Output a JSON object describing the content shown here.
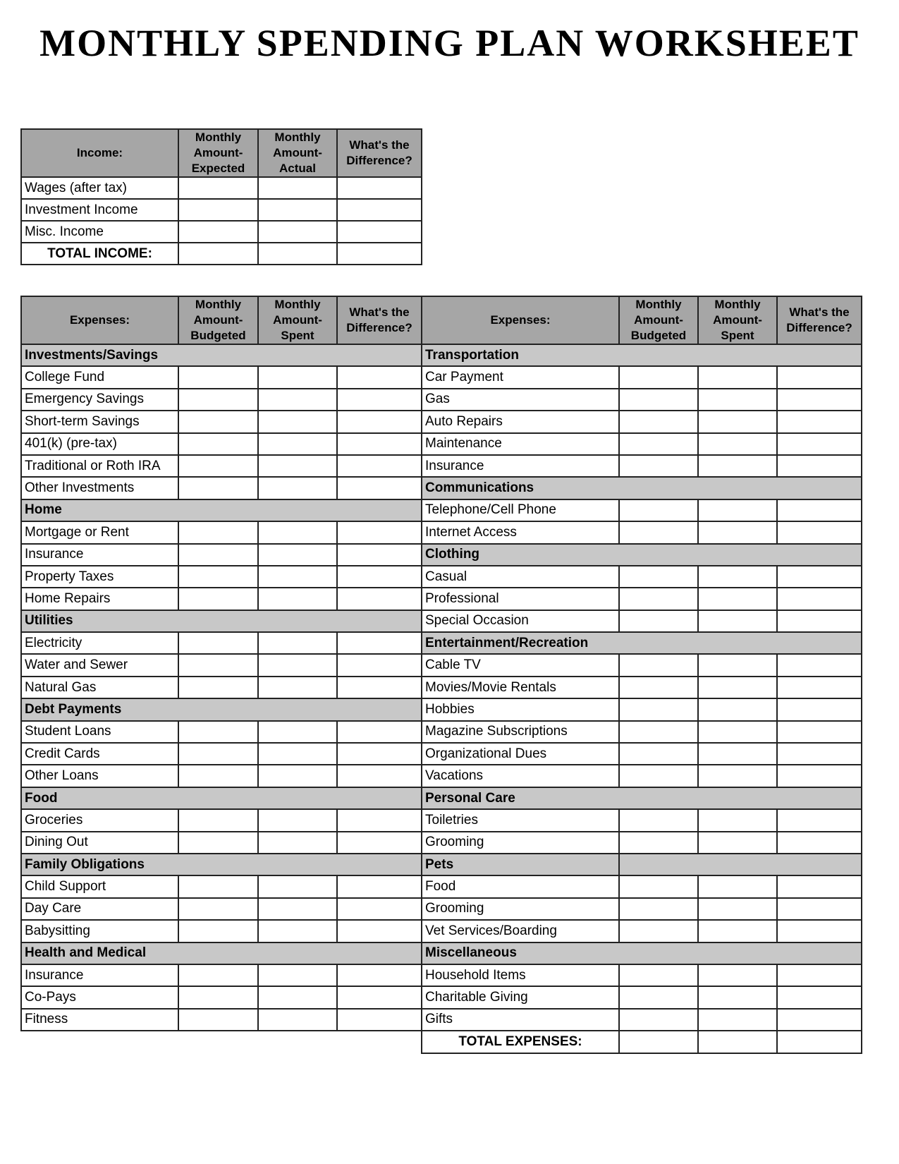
{
  "title": "MONTHLY SPENDING PLAN WORKSHEET",
  "colors": {
    "header_gray": "#a6a6a6",
    "category_gray": "#c8c8c8",
    "border": "#222222"
  },
  "income": {
    "headers": [
      "Income:",
      "Monthly Amount-Expected",
      "Monthly Amount-Actual",
      "What's the Difference?"
    ],
    "rows": [
      "Wages (after tax)",
      "Investment Income",
      "Misc. Income"
    ],
    "total_label": "TOTAL INCOME:"
  },
  "expenses": {
    "headers": [
      "Expenses:",
      "Monthly Amount-Budgeted",
      "Monthly Amount-Spent",
      "What's the Difference?"
    ],
    "left": [
      {
        "category": "Investments/Savings",
        "items": [
          "College Fund",
          "Emergency Savings",
          "Short-term Savings",
          "401(k) (pre-tax)",
          "Traditional or Roth IRA",
          "Other Investments"
        ]
      },
      {
        "category": "Home",
        "items": [
          "Mortgage or Rent",
          "Insurance",
          "Property Taxes",
          "Home Repairs"
        ]
      },
      {
        "category": "Utilities",
        "items": [
          "Electricity",
          "Water and Sewer",
          "Natural Gas"
        ]
      },
      {
        "category": "Debt Payments",
        "items": [
          "Student Loans",
          "Credit Cards",
          "Other Loans"
        ]
      },
      {
        "category": "Food",
        "items": [
          "Groceries",
          "Dining Out"
        ]
      },
      {
        "category": "Family Obligations",
        "items": [
          "Child Support",
          "Day Care",
          "Babysitting"
        ]
      },
      {
        "category": "Health and Medical",
        "items": [
          "Insurance",
          "Co-Pays",
          "Fitness"
        ]
      }
    ],
    "right": [
      {
        "category": "Transportation",
        "items": [
          "Car Payment",
          "Gas",
          "Auto Repairs",
          "Maintenance",
          "Insurance"
        ]
      },
      {
        "category": "Communications",
        "items": [
          "Telephone/Cell Phone",
          "Internet Access"
        ]
      },
      {
        "category": "Clothing",
        "items": [
          "Casual",
          "Professional",
          "Special Occasion"
        ]
      },
      {
        "category": "Entertainment/Recreation",
        "items": [
          "Cable TV",
          "Movies/Movie Rentals",
          "Hobbies",
          "Magazine Subscriptions",
          "Organizational Dues",
          "Vacations"
        ]
      },
      {
        "category": "Personal Care",
        "items": [
          "Toiletries",
          "Grooming"
        ]
      },
      {
        "category": "Pets",
        "split": true,
        "items": [
          "Food",
          "Grooming",
          "Vet Services/Boarding"
        ]
      },
      {
        "category": "Miscellaneous",
        "items": [
          "Household Items",
          "Charitable Giving",
          "Gifts"
        ]
      }
    ],
    "total_label": "TOTAL EXPENSES:"
  }
}
